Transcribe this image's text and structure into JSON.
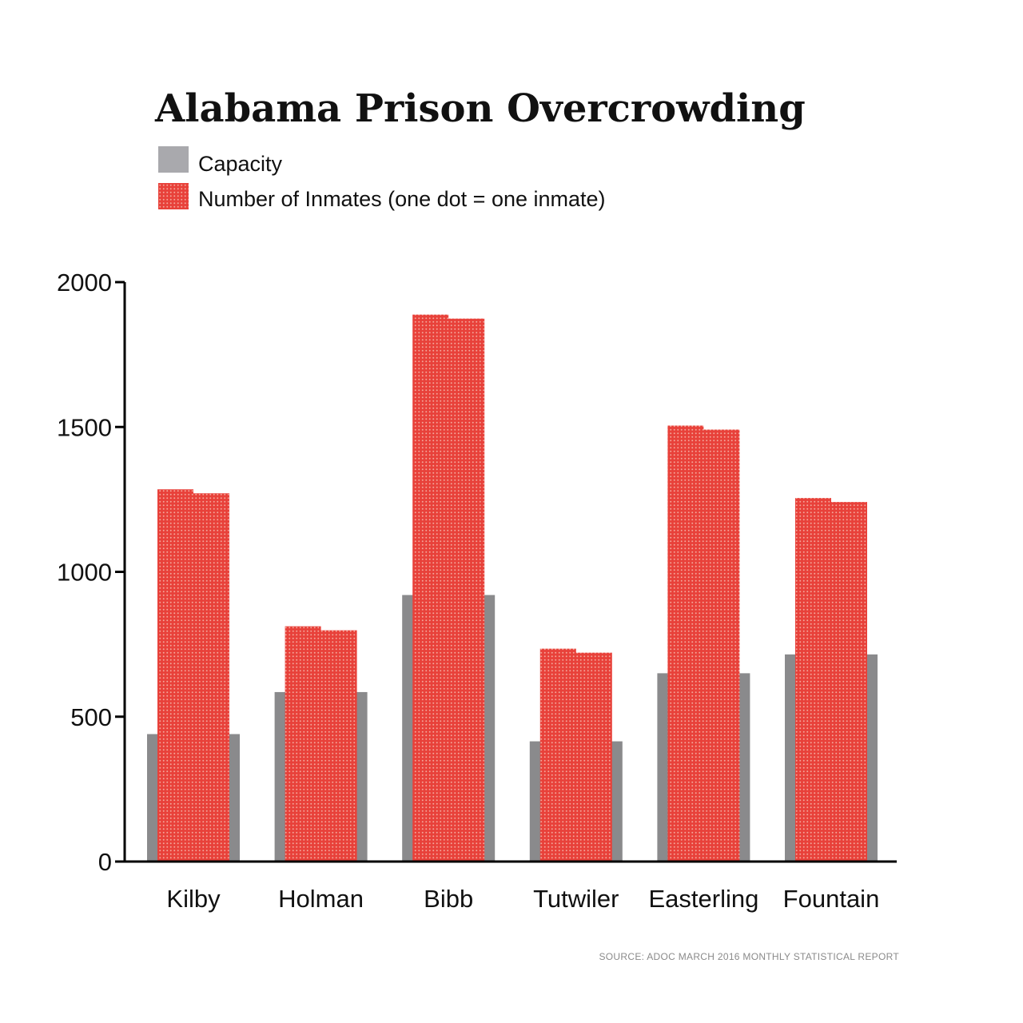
{
  "chart_data": {
    "type": "bar",
    "title": "Alabama Prison Overcrowding",
    "categories": [
      "Kilby",
      "Holman",
      "Bibb",
      "Tutwiler",
      "Easterling",
      "Fountain"
    ],
    "series": [
      {
        "name": "Capacity",
        "values": [
          440,
          585,
          920,
          415,
          650,
          715
        ]
      },
      {
        "name": "Number of Inmates (one dot = one inmate)",
        "values": [
          1285,
          812,
          1888,
          735,
          1505,
          1255
        ]
      }
    ],
    "ylim": [
      0,
      2000
    ],
    "yticks": [
      0,
      500,
      1000,
      1500,
      2000
    ],
    "xlabel": "",
    "ylabel": "",
    "grid": false,
    "legend_position": "top-left",
    "colors": {
      "capacity": "#8a8a8c",
      "inmates": "#e8413a",
      "legend_capacity": "#a9a9ad",
      "axis": "#000000"
    },
    "source": "SOURCE: ADOC MARCH 2016 MONTHLY STATISTICAL REPORT"
  }
}
